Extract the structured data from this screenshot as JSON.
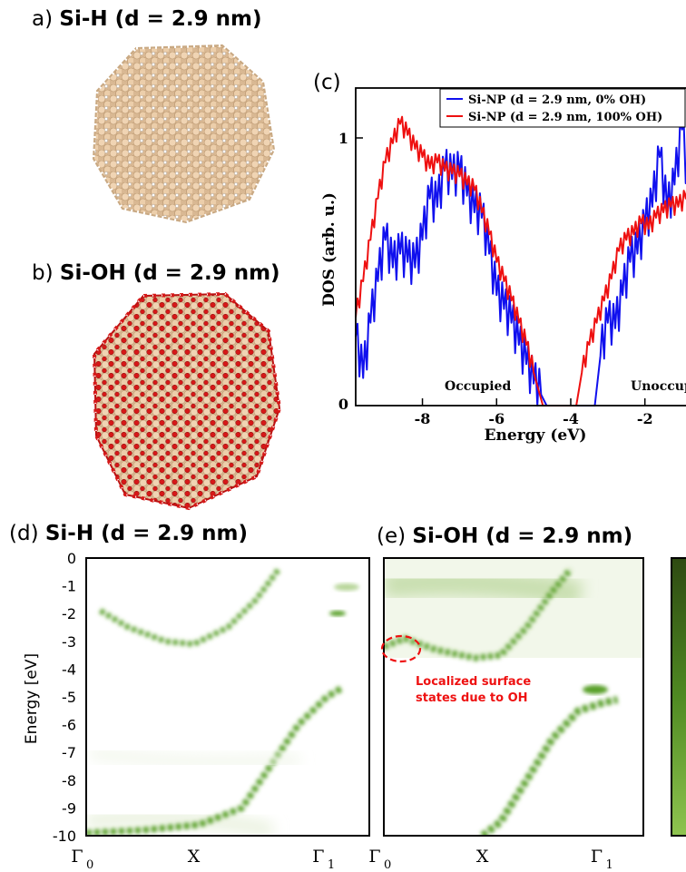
{
  "panels": {
    "a": {
      "prefix": "a)",
      "title": "Si-H (d = 2.9 nm)"
    },
    "b": {
      "prefix": "b)",
      "title": "Si-OH (d = 2.9 nm)"
    },
    "c": {
      "prefix": "(c)"
    },
    "d": {
      "prefix": "(d)",
      "title": "Si-H (d = 2.9 nm)"
    },
    "e": {
      "prefix": "(e)",
      "title": "Si-OH (d = 2.9 nm)"
    }
  },
  "dos_chart": {
    "ylabel": "DOS (arb. u.)",
    "xlabel": "Energy (eV)",
    "yticks": [
      "1",
      "0"
    ],
    "xticks": [
      "-8",
      "-6",
      "-4",
      "-2"
    ],
    "annotations": [
      "Occupied",
      "Unoccupied"
    ],
    "legend": [
      "Si-NP (d = 2.9 nm, 0% OH)",
      "Si-NP (d = 2.9 nm, 100% OH)"
    ]
  },
  "band_charts": {
    "ylabel": "Energy [eV]",
    "yticks": [
      "0",
      "-1",
      "-2",
      "-3",
      "-4",
      "-5",
      "-6",
      "-7",
      "-8",
      "-9",
      "-10"
    ],
    "xticks": [
      "Γ",
      "X",
      "Γ"
    ],
    "xtick_subs": [
      "0",
      "",
      "1"
    ],
    "annotation": [
      "Localized surface",
      "states due to OH"
    ]
  },
  "colors": {
    "blue": "#1010ee",
    "red": "#ee1010",
    "green": "#5aa02a",
    "silicon": "#e9cba8",
    "oxygen": "#d61818"
  },
  "chart_data": [
    {
      "type": "line",
      "title": "",
      "xlabel": "Energy (eV)",
      "ylabel": "DOS (arb. u.)",
      "xlim": [
        -9.8,
        -0.5
      ],
      "ylim": [
        0,
        1.15
      ],
      "series": [
        {
          "name": "Si-NP (d = 2.9 nm, 0% OH)",
          "color": "#1010ee",
          "x": [
            -9.8,
            -9.6,
            -9.4,
            -9.2,
            -9.0,
            -8.8,
            -8.6,
            -8.4,
            -8.2,
            -8.0,
            -7.8,
            -7.6,
            -7.4,
            -7.2,
            -7.0,
            -6.8,
            -6.6,
            -6.4,
            -6.2,
            -6.0,
            -5.8,
            -5.6,
            -5.4,
            -5.2,
            -5.0,
            -4.8,
            -4.65,
            -3.35,
            -3.2,
            -3.0,
            -2.8,
            -2.6,
            -2.4,
            -2.2,
            -2.0,
            -1.8,
            -1.6,
            -1.4,
            -1.2,
            -1.0,
            -0.8,
            -0.6,
            -0.5
          ],
          "y": [
            0.25,
            0.1,
            0.3,
            0.45,
            0.6,
            0.5,
            0.55,
            0.52,
            0.5,
            0.6,
            0.75,
            0.72,
            0.85,
            0.82,
            0.84,
            0.76,
            0.7,
            0.68,
            0.55,
            0.4,
            0.35,
            0.3,
            0.22,
            0.15,
            0.08,
            0.04,
            0.0,
            0.0,
            0.18,
            0.3,
            0.28,
            0.4,
            0.52,
            0.55,
            0.65,
            0.72,
            0.9,
            0.7,
            0.8,
            1.0,
            0.75,
            0.98,
            0.8
          ]
        },
        {
          "name": "Si-NP (d = 2.9 nm, 100% OH)",
          "color": "#ee1010",
          "x": [
            -9.8,
            -9.6,
            -9.4,
            -9.2,
            -9.0,
            -8.8,
            -8.6,
            -8.4,
            -8.2,
            -8.0,
            -7.8,
            -7.6,
            -7.4,
            -7.2,
            -7.0,
            -6.8,
            -6.6,
            -6.4,
            -6.2,
            -6.0,
            -5.8,
            -5.6,
            -5.4,
            -5.2,
            -5.0,
            -4.75,
            -3.85,
            -3.7,
            -3.5,
            -3.3,
            -3.1,
            -2.9,
            -2.7,
            -2.5,
            -2.3,
            -2.1,
            -1.9,
            -1.7,
            -1.5,
            -1.3,
            -1.1,
            -0.9,
            -0.7,
            -0.5
          ],
          "y": [
            0.32,
            0.45,
            0.6,
            0.75,
            0.88,
            0.95,
            1.02,
            0.98,
            0.93,
            0.9,
            0.86,
            0.88,
            0.85,
            0.84,
            0.83,
            0.8,
            0.78,
            0.7,
            0.62,
            0.52,
            0.45,
            0.38,
            0.3,
            0.22,
            0.12,
            0.0,
            0.0,
            0.12,
            0.22,
            0.3,
            0.38,
            0.46,
            0.56,
            0.6,
            0.62,
            0.66,
            0.64,
            0.68,
            0.7,
            0.72,
            0.72,
            0.75,
            0.78,
            0.72
          ]
        }
      ]
    },
    {
      "type": "heatmap",
      "title": "Si-H (d = 2.9 nm)",
      "ylabel": "Energy [eV]",
      "ylim": [
        -10,
        0
      ],
      "x_categories": [
        "Γ0",
        "X",
        "Γ1"
      ],
      "bands": [
        {
          "name": "valence",
          "x": [
            0.0,
            0.2,
            0.4,
            0.55,
            0.65,
            0.75,
            0.85,
            0.9
          ],
          "y": [
            -9.9,
            -9.8,
            -9.6,
            -9.0,
            -7.5,
            -6.0,
            -5.0,
            -4.7
          ]
        },
        {
          "name": "conduction",
          "x": [
            0.05,
            0.15,
            0.28,
            0.38,
            0.5,
            0.6,
            0.68
          ],
          "y": [
            -1.9,
            -2.5,
            -3.0,
            -3.1,
            -2.5,
            -1.5,
            -0.4
          ]
        }
      ]
    },
    {
      "type": "heatmap",
      "title": "Si-OH (d = 2.9 nm)",
      "ylabel": "Energy [eV]",
      "ylim": [
        -10,
        0
      ],
      "x_categories": [
        "Γ0",
        "X",
        "Γ1"
      ],
      "bands": [
        {
          "name": "valence",
          "x": [
            0.38,
            0.45,
            0.55,
            0.65,
            0.75,
            0.85,
            0.9
          ],
          "y": [
            -10.0,
            -9.5,
            -8.0,
            -6.5,
            -5.5,
            -5.2,
            -5.1
          ]
        },
        {
          "name": "conduction",
          "x": [
            0.0,
            0.08,
            0.2,
            0.35,
            0.45,
            0.55,
            0.65,
            0.72
          ],
          "y": [
            -3.2,
            -2.9,
            -3.3,
            -3.6,
            -3.5,
            -2.5,
            -1.2,
            -0.4
          ]
        }
      ],
      "annotation": "Localized surface states due to OH"
    }
  ]
}
